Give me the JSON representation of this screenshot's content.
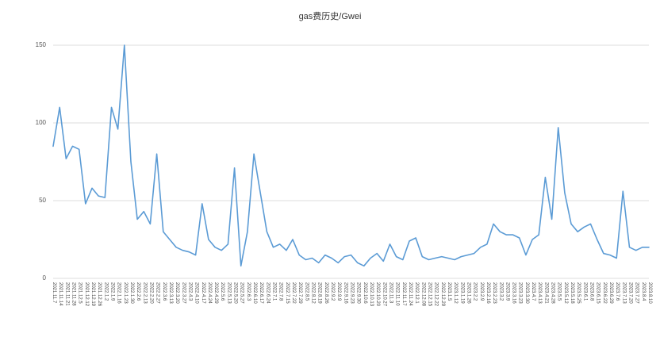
{
  "chart_data": {
    "type": "line",
    "title": "gas费历史/Gwei",
    "xlabel": "",
    "ylabel": "",
    "ylim": [
      0,
      150
    ],
    "yticks": [
      0,
      50,
      100,
      150
    ],
    "grid": true,
    "legend": "none",
    "line_color": "#5b9bd5",
    "grid_color": "#dcdcdc",
    "axis_label_color": "#555555",
    "x_label_color": "#444444",
    "background_color": "#ffffff",
    "categories": [
      "2021.11.7",
      "2021.11.14",
      "2021.11.21",
      "2021.11.28",
      "2021.12.5",
      "2021.12.12",
      "2021.12.19",
      "2021.12.26",
      "2022.1.2",
      "2022.1.9",
      "2022.1.16",
      "2022.1.23",
      "2022.1.30",
      "2022.2.6",
      "2022.2.13",
      "2022.2.20",
      "2022.2.27",
      "2022.3.6",
      "2022.3.13",
      "2022.3.20",
      "2022.3.27",
      "2022.4.3",
      "2022.4.10",
      "2022.4.17",
      "2022.4.24",
      "2022.4.29",
      "2022.5.6",
      "2022.5.13",
      "2022.5.20",
      "2022.5.27",
      "2022.6.3",
      "2022.6.10",
      "2022.6.17",
      "2022.6.24",
      "2022.7.1",
      "2022.7.8",
      "2022.7.15",
      "2022.7.22",
      "2022.7.29",
      "2022.8.5",
      "2022.8.12",
      "2022.8.19",
      "2022.8.26",
      "2022.9.2",
      "2022.9.9",
      "2022.9.16",
      "2022.9.23",
      "2022.9.30",
      "2022.10.6",
      "2022.10.13",
      "2022.10.20",
      "2022.10.27",
      "2022.11.3",
      "2022.11.10",
      "2022.11.17",
      "2022.11.24",
      "2022.12.1",
      "2022.12.08",
      "2022.12.15",
      "2022.12.22",
      "2022.12.29",
      "2023.1.5",
      "2023.1.12",
      "2023.1.19",
      "2023.1.26",
      "2023.2.2",
      "2023.2.9",
      "2023.2.16",
      "2023.2.23",
      "2023.3.2",
      "2023.3.9",
      "2023.3.16",
      "2023.3.23",
      "2023.3.30",
      "2023.4.7",
      "2023.4.13",
      "2023.4.21",
      "2023.4.28",
      "2023.5.5",
      "2023.5.12",
      "2023.5.18",
      "2023.5.25",
      "2023.6.1",
      "2023.6.8",
      "2023.6.15",
      "2023.6.22",
      "2023.6.29",
      "2023.7.6",
      "2023.7.13",
      "2023.7.20",
      "2023.7.27",
      "2023.8.4",
      "2023.8.10"
    ],
    "values": [
      85,
      110,
      77,
      85,
      83,
      48,
      58,
      53,
      52,
      110,
      96,
      150,
      75,
      38,
      43,
      35,
      80,
      30,
      25,
      20,
      18,
      17,
      15,
      48,
      25,
      20,
      18,
      22,
      71,
      8,
      30,
      80,
      55,
      30,
      20,
      22,
      18,
      25,
      15,
      12,
      13,
      10,
      15,
      13,
      10,
      14,
      15,
      10,
      8,
      13,
      16,
      11,
      22,
      14,
      12,
      24,
      26,
      14,
      12,
      13,
      14,
      13,
      12,
      14,
      15,
      16,
      20,
      22,
      35,
      30,
      28,
      28,
      26,
      15,
      25,
      28,
      65,
      38,
      97,
      55,
      35,
      30,
      33,
      35,
      25,
      16,
      15,
      13,
      56,
      20,
      18,
      20,
      20
    ]
  }
}
